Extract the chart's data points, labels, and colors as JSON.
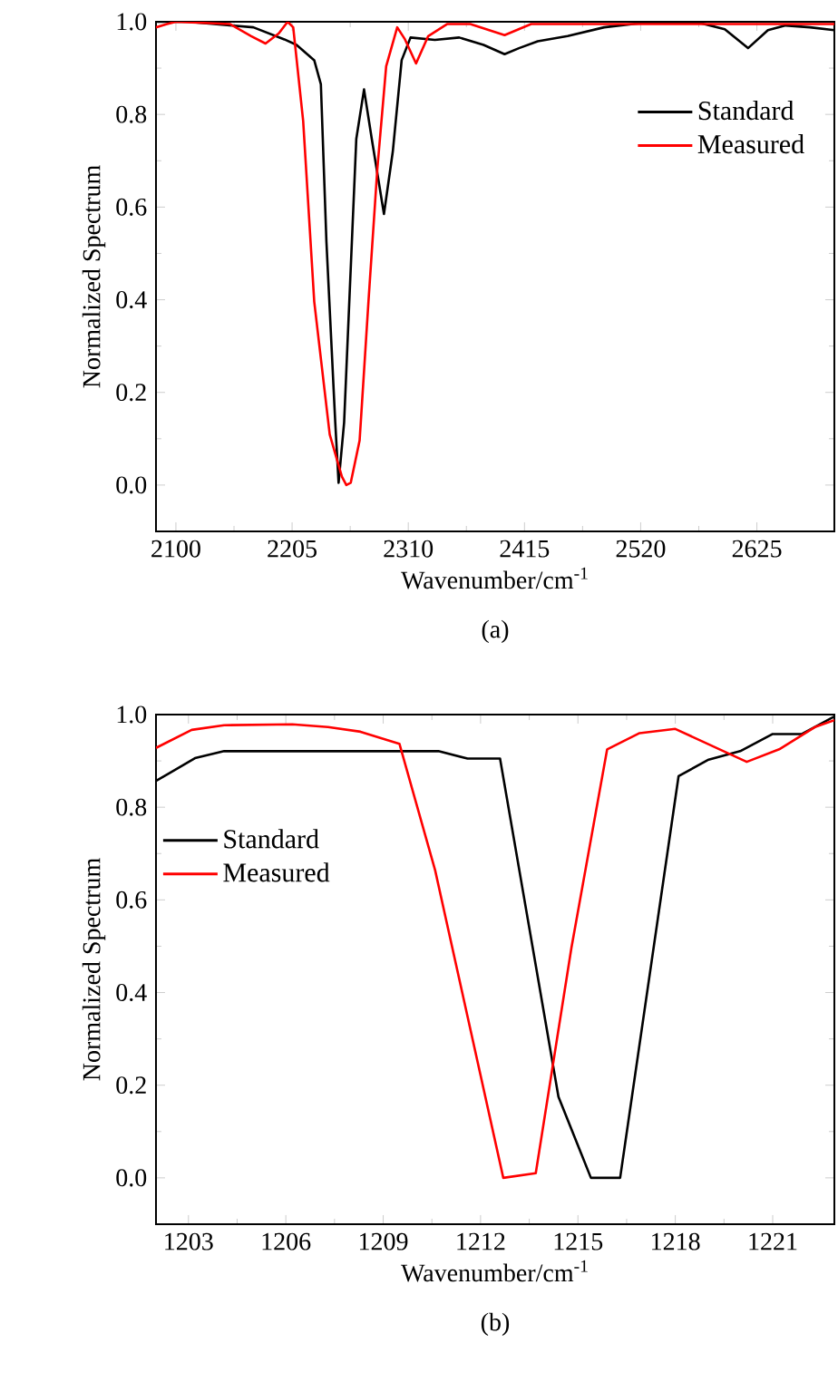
{
  "chart_data": [
    {
      "type": "line",
      "xlabel": "Wavenumber/cm$^{-1}$",
      "ylabel": "Normalized Spectrum",
      "annotations": [
        "(a)"
      ],
      "xlim": [
        2082,
        2695
      ],
      "ylim": [
        -0.1,
        1.0
      ],
      "xticks": [
        2100,
        2205,
        2310,
        2415,
        2520,
        2625
      ],
      "yticks": [
        {
          "value": 0,
          "label": "0.0"
        },
        {
          "value": 0.2,
          "label": "0.2"
        },
        {
          "value": 0.4,
          "label": "0.4"
        },
        {
          "value": 0.6,
          "label": "0.6"
        },
        {
          "value": 0.8,
          "label": "0.8"
        },
        {
          "value": 1.0,
          "label": "1.0"
        }
      ],
      "legend": "top right",
      "grid": false,
      "marker": "none",
      "line_style": "solid",
      "series": [
        {
          "name": "Standard",
          "color": "#000000",
          "x": [
            2083,
            2111,
            2170,
            2198,
            2209,
            2225,
            2231,
            2236,
            2244,
            2247,
            2252,
            2263,
            2270,
            2277,
            2288,
            2296,
            2304,
            2312,
            2334,
            2356,
            2378,
            2397,
            2410,
            2427,
            2454,
            2487,
            2520,
            2574,
            2596,
            2617,
            2635,
            2651,
            2673,
            2695
          ],
          "values": [
            1.0,
            1.0,
            0.988,
            0.962,
            0.95,
            0.917,
            0.865,
            0.526,
            0.135,
            0.005,
            0.135,
            0.747,
            0.854,
            0.747,
            0.585,
            0.72,
            0.917,
            0.966,
            0.961,
            0.966,
            0.95,
            0.93,
            0.943,
            0.958,
            0.969,
            0.988,
            0.997,
            0.997,
            0.984,
            0.943,
            0.982,
            0.992,
            0.988,
            0.982
          ]
        },
        {
          "name": "Measured",
          "color": "#ff0000",
          "x": [
            2082,
            2092,
            2100,
            2149,
            2168,
            2181,
            2193,
            2201,
            2206,
            2215,
            2225,
            2239,
            2250,
            2254,
            2258,
            2266,
            2274,
            2282,
            2290,
            2300,
            2307,
            2317,
            2328,
            2345,
            2366,
            2397,
            2421,
            2454,
            2695
          ],
          "values": [
            0.988,
            0.995,
            1.0,
            0.995,
            0.969,
            0.953,
            0.975,
            1.0,
            0.988,
            0.786,
            0.396,
            0.109,
            0.018,
            0.0,
            0.005,
            0.096,
            0.396,
            0.682,
            0.904,
            0.988,
            0.962,
            0.91,
            0.969,
            0.995,
            0.995,
            0.971,
            0.995,
            0.995,
            0.995
          ]
        }
      ]
    },
    {
      "type": "line",
      "xlabel": "Wavenumber/cm$^{-1}$",
      "ylabel": "Normalized Spectrum",
      "annotations": [
        "(b)"
      ],
      "xlim": [
        1202,
        1222.9
      ],
      "ylim": [
        -0.1,
        1.0
      ],
      "xticks": [
        1203,
        1206,
        1209,
        1212,
        1215,
        1218,
        1221
      ],
      "yticks": [
        {
          "value": 0,
          "label": "0.0"
        },
        {
          "value": 0.2,
          "label": "0.2"
        },
        {
          "value": 0.4,
          "label": "0.4"
        },
        {
          "value": 0.6,
          "label": "0.6"
        },
        {
          "value": 0.8,
          "label": "0.8"
        },
        {
          "value": 1.0,
          "label": "1.0"
        }
      ],
      "legend": "left",
      "grid": false,
      "marker": "none",
      "line_style": "solid",
      "series": [
        {
          "name": "Standard",
          "color": "#000000",
          "x": [
            1202.0,
            1202.4,
            1203.2,
            1204.1,
            1210.7,
            1211.6,
            1212.6,
            1214.4,
            1215.4,
            1216.3,
            1218.1,
            1219.0,
            1220.0,
            1221.0,
            1221.9,
            1222.9
          ],
          "values": [
            0.857,
            0.873,
            0.906,
            0.921,
            0.921,
            0.905,
            0.905,
            0.175,
            0.0,
            0.0,
            0.867,
            0.902,
            0.921,
            0.958,
            0.958,
            0.996
          ]
        },
        {
          "name": "Measured",
          "color": "#ff0000",
          "x": [
            1202.0,
            1203.1,
            1204.1,
            1206.2,
            1207.3,
            1208.3,
            1209.5,
            1210.6,
            1212.7,
            1213.7,
            1214.8,
            1215.9,
            1216.9,
            1218.0,
            1220.2,
            1221.2,
            1222.3,
            1222.9
          ],
          "values": [
            0.928,
            0.967,
            0.977,
            0.979,
            0.973,
            0.963,
            0.937,
            0.664,
            0.0,
            0.01,
            0.497,
            0.925,
            0.96,
            0.969,
            0.898,
            0.925,
            0.973,
            0.988
          ]
        }
      ]
    }
  ]
}
